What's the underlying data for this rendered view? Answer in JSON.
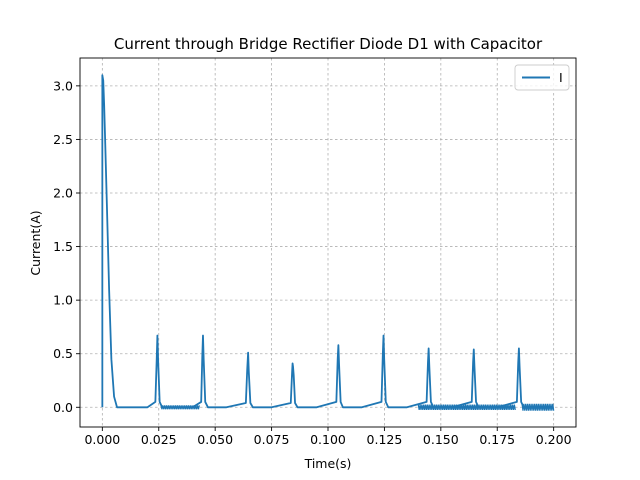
{
  "chart_data": {
    "type": "line",
    "title": "Current through Bridge Rectifier Diode D1 with Capacitor",
    "xlabel": "Time(s)",
    "ylabel": "Current(A)",
    "xlim": [
      -0.0099,
      0.2099
    ],
    "ylim": [
      -0.184,
      3.26
    ],
    "xticks": [
      0.0,
      0.025,
      0.05,
      0.075,
      0.1,
      0.125,
      0.15,
      0.175,
      0.2
    ],
    "xtick_labels": [
      "0.000",
      "0.025",
      "0.050",
      "0.075",
      "0.100",
      "0.125",
      "0.150",
      "0.175",
      "0.200"
    ],
    "yticks": [
      0.0,
      0.5,
      1.0,
      1.5,
      2.0,
      2.5,
      3.0
    ],
    "ytick_labels": [
      "0.0",
      "0.5",
      "1.0",
      "1.5",
      "2.0",
      "2.5",
      "3.0"
    ],
    "grid": true,
    "legend_position": "top-right",
    "series": [
      {
        "name": "I",
        "color": "#1f77b4",
        "x": [
          0.0,
          0.0,
          0.0004,
          0.0008,
          0.0013,
          0.002,
          0.003,
          0.004,
          0.0052,
          0.0065,
          0.01,
          0.02,
          0.0235,
          0.0241,
          0.0244,
          0.0247,
          0.0254,
          0.0265,
          0.03,
          0.04,
          0.0438,
          0.0443,
          0.0446,
          0.0449,
          0.0456,
          0.0468,
          0.055,
          0.0636,
          0.0642,
          0.0646,
          0.0649,
          0.0656,
          0.0667,
          0.075,
          0.0835,
          0.0841,
          0.0843,
          0.0845,
          0.0848,
          0.0854,
          0.0865,
          0.095,
          0.1037,
          0.1043,
          0.1046,
          0.1049,
          0.1056,
          0.1066,
          0.115,
          0.1237,
          0.1243,
          0.1246,
          0.1249,
          0.1256,
          0.1267,
          0.135,
          0.1437,
          0.1443,
          0.1446,
          0.1449,
          0.1456,
          0.1467,
          0.155,
          0.1637,
          0.1643,
          0.1646,
          0.1649,
          0.1656,
          0.1667,
          0.175,
          0.1837,
          0.1843,
          0.1846,
          0.1849,
          0.1856,
          0.1867,
          0.19,
          0.2
        ],
        "y": [
          0.0,
          3.1,
          3.05,
          2.82,
          2.45,
          1.9,
          1.1,
          0.45,
          0.1,
          0.0,
          0.0,
          0.0,
          0.05,
          0.45,
          0.67,
          0.45,
          0.05,
          0.0,
          0.0,
          0.0,
          0.05,
          0.48,
          0.67,
          0.45,
          0.05,
          0.0,
          0.0,
          0.04,
          0.35,
          0.51,
          0.33,
          0.04,
          0.0,
          0.0,
          0.04,
          0.33,
          0.41,
          0.38,
          0.3,
          0.04,
          0.0,
          0.0,
          0.05,
          0.45,
          0.58,
          0.4,
          0.05,
          0.0,
          0.0,
          0.05,
          0.5,
          0.67,
          0.45,
          0.05,
          0.0,
          0.0,
          0.05,
          0.42,
          0.55,
          0.38,
          0.05,
          0.0,
          0.0,
          0.05,
          0.42,
          0.54,
          0.38,
          0.05,
          0.0,
          0.0,
          0.05,
          0.42,
          0.55,
          0.38,
          0.05,
          0.0,
          0.0,
          0.0
        ]
      }
    ],
    "noise_band": [
      {
        "x_start": 0.026,
        "x_end": 0.043,
        "amplitude": 0.018
      },
      {
        "x_start": 0.14,
        "x_end": 0.183,
        "amplitude": 0.025
      },
      {
        "x_start": 0.186,
        "x_end": 0.2,
        "amplitude": 0.032
      }
    ]
  }
}
